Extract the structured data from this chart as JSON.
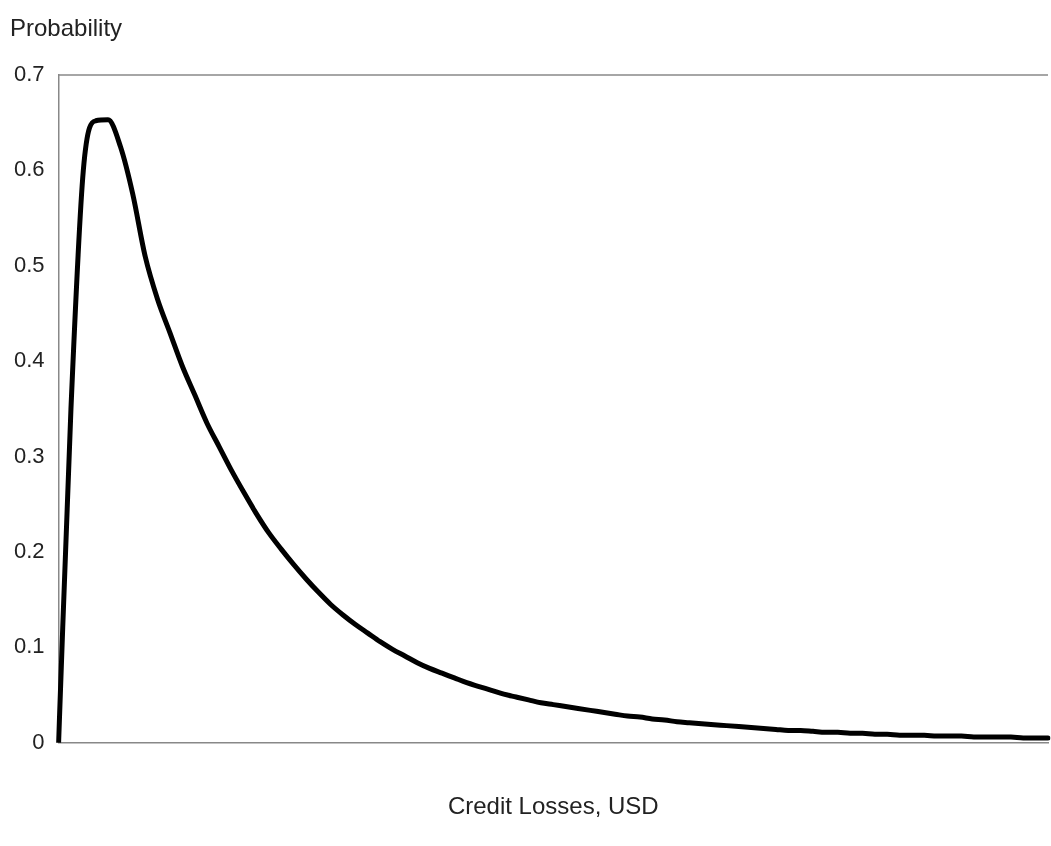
{
  "chart_data": {
    "type": "line",
    "xlabel": "Credit Losses, USD",
    "ylabel": "Probability",
    "categories": [
      null,
      null,
      null,
      null,
      null,
      null,
      null,
      null,
      null,
      null,
      null,
      null,
      null,
      null,
      null,
      null,
      null,
      null,
      null,
      null,
      null,
      null,
      null,
      null,
      null,
      null,
      null,
      null,
      null,
      null,
      null,
      null,
      null,
      null,
      null,
      null,
      null,
      null,
      null,
      null,
      null,
      null,
      null,
      null,
      null,
      null,
      null,
      null,
      null,
      null,
      null,
      null,
      null,
      null,
      null,
      null,
      null,
      null,
      null,
      null,
      null,
      null,
      null,
      null,
      null,
      null,
      null,
      null,
      null,
      null,
      null,
      null,
      null,
      null,
      null,
      null,
      null,
      null,
      null,
      null,
      null
    ],
    "series": [
      {
        "color": "#000000",
        "values": [
          0,
          0.35,
          0.6,
          0.652,
          0.653,
          0.625,
          0.575,
          0.51,
          0.465,
          0.43,
          0.395,
          0.365,
          0.335,
          0.31,
          0.285,
          0.262,
          0.24,
          0.22,
          0.203,
          0.187,
          0.172,
          0.158,
          0.145,
          0.134,
          0.124,
          0.115,
          0.106,
          0.098,
          0.091,
          0.084,
          0.078,
          0.073,
          0.068,
          0.063,
          0.059,
          0.055,
          0.051,
          0.048,
          0.045,
          0.042,
          0.04,
          0.038,
          0.036,
          0.034,
          0.032,
          0.03,
          0.028,
          0.027,
          0.025,
          0.024,
          0.022,
          0.021,
          0.02,
          0.019,
          0.018,
          0.017,
          0.016,
          0.015,
          0.014,
          0.013,
          0.013,
          0.012,
          0.011,
          0.011,
          0.01,
          0.01,
          0.009,
          0.009,
          0.008,
          0.008,
          0.008,
          0.007,
          0.007,
          0.007,
          0.006,
          0.006,
          0.006,
          0.006,
          0.005,
          0.005,
          0.005
        ]
      }
    ],
    "ylim": [
      0,
      0.7
    ],
    "yticks": [
      0,
      0.1,
      0.2,
      0.3,
      0.4,
      0.5,
      0.6,
      0.7
    ],
    "grid": false,
    "legend": false,
    "marker": "none",
    "line_style": "solid"
  }
}
